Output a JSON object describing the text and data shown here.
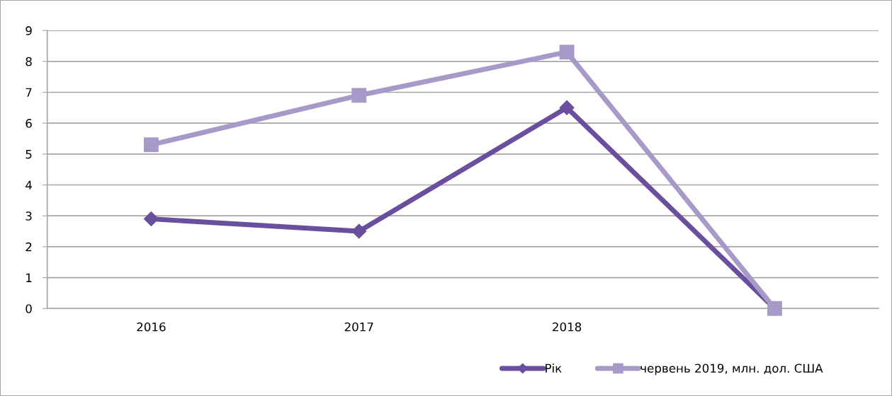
{
  "chart_data": {
    "type": "line",
    "categories": [
      "2016",
      "2017",
      "2018",
      null
    ],
    "series": [
      {
        "name": "Рік",
        "color": "#6a4f9e",
        "marker": "diamond",
        "values": [
          2.9,
          2.5,
          6.5,
          0
        ]
      },
      {
        "name": "червень 2019, млн. дол. США",
        "color": "#a89ac8",
        "marker": "square",
        "values": [
          5.3,
          6.9,
          8.3,
          0
        ]
      }
    ],
    "ylim": [
      0,
      9
    ],
    "yticks": [
      0,
      1,
      2,
      3,
      4,
      5,
      6,
      7,
      8,
      9
    ],
    "grid": "y",
    "legend": "bottom",
    "line_style": "solid"
  }
}
